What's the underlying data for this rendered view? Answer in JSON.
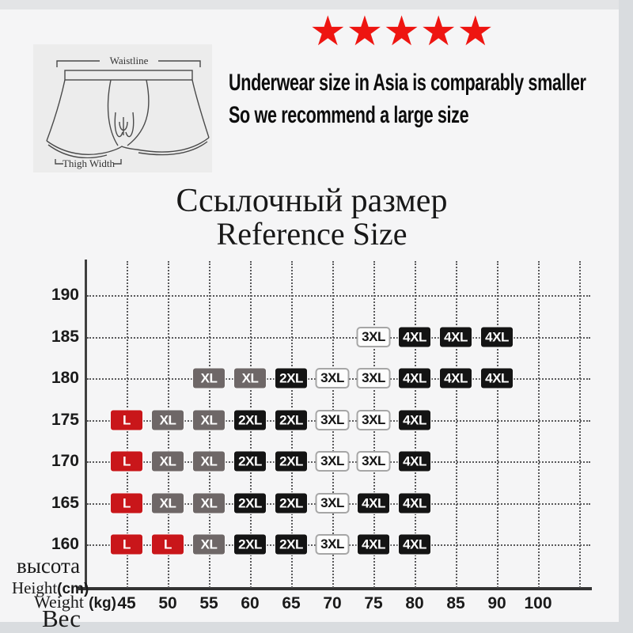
{
  "rating": {
    "stars": "★★★★★",
    "color": "#ee1511"
  },
  "note": {
    "line1": "Underwear size in Asia is comparably smaller",
    "line2": "So we recommend a large size"
  },
  "diagram": {
    "waistline_label": "Waistline",
    "thigh_label": "Thigh Width"
  },
  "captions": {
    "height_ru": "высота",
    "height_en": "Height",
    "height_unit": "(cm)",
    "weight_en": "Weight",
    "weight_unit": "(kg)",
    "weight_ru": "Вес"
  },
  "chart_data": {
    "type": "table",
    "title_ru": "Ссылочный размер",
    "title_en": "Reference Size",
    "xlabel": "Weight (kg) / Вес",
    "ylabel": "высота Height(cm)",
    "x_ticks": [
      45,
      50,
      55,
      60,
      65,
      70,
      75,
      80,
      85,
      90,
      100
    ],
    "y_ticks": [
      190,
      185,
      180,
      175,
      170,
      165,
      160
    ],
    "grid": true,
    "legend_styles": {
      "L": "red",
      "XL": "gray",
      "2XL": "black",
      "3XL": "outline",
      "4XL": "black"
    },
    "size_colors": {
      "L": "#c9161a",
      "XL": "#6e6767",
      "2XL": "#141414",
      "3XL": "#fdfdfd",
      "4XL": "#141414"
    },
    "cells": [
      {
        "height": 185,
        "weight": 75,
        "size": "3XL"
      },
      {
        "height": 185,
        "weight": 80,
        "size": "4XL"
      },
      {
        "height": 185,
        "weight": 85,
        "size": "4XL"
      },
      {
        "height": 185,
        "weight": 90,
        "size": "4XL"
      },
      {
        "height": 180,
        "weight": 55,
        "size": "XL"
      },
      {
        "height": 180,
        "weight": 60,
        "size": "XL"
      },
      {
        "height": 180,
        "weight": 65,
        "size": "2XL"
      },
      {
        "height": 180,
        "weight": 70,
        "size": "3XL"
      },
      {
        "height": 180,
        "weight": 75,
        "size": "3XL"
      },
      {
        "height": 180,
        "weight": 80,
        "size": "4XL"
      },
      {
        "height": 180,
        "weight": 85,
        "size": "4XL"
      },
      {
        "height": 180,
        "weight": 90,
        "size": "4XL"
      },
      {
        "height": 175,
        "weight": 45,
        "size": "L"
      },
      {
        "height": 175,
        "weight": 50,
        "size": "XL"
      },
      {
        "height": 175,
        "weight": 55,
        "size": "XL"
      },
      {
        "height": 175,
        "weight": 60,
        "size": "2XL"
      },
      {
        "height": 175,
        "weight": 65,
        "size": "2XL"
      },
      {
        "height": 175,
        "weight": 70,
        "size": "3XL"
      },
      {
        "height": 175,
        "weight": 75,
        "size": "3XL"
      },
      {
        "height": 175,
        "weight": 80,
        "size": "4XL"
      },
      {
        "height": 170,
        "weight": 45,
        "size": "L"
      },
      {
        "height": 170,
        "weight": 50,
        "size": "XL"
      },
      {
        "height": 170,
        "weight": 55,
        "size": "XL"
      },
      {
        "height": 170,
        "weight": 60,
        "size": "2XL"
      },
      {
        "height": 170,
        "weight": 65,
        "size": "2XL"
      },
      {
        "height": 170,
        "weight": 70,
        "size": "3XL"
      },
      {
        "height": 170,
        "weight": 75,
        "size": "3XL"
      },
      {
        "height": 170,
        "weight": 80,
        "size": "4XL"
      },
      {
        "height": 165,
        "weight": 45,
        "size": "L"
      },
      {
        "height": 165,
        "weight": 50,
        "size": "XL"
      },
      {
        "height": 165,
        "weight": 55,
        "size": "XL"
      },
      {
        "height": 165,
        "weight": 60,
        "size": "2XL"
      },
      {
        "height": 165,
        "weight": 65,
        "size": "2XL"
      },
      {
        "height": 165,
        "weight": 70,
        "size": "3XL"
      },
      {
        "height": 165,
        "weight": 75,
        "size": "4XL"
      },
      {
        "height": 165,
        "weight": 80,
        "size": "4XL"
      },
      {
        "height": 160,
        "weight": 45,
        "size": "L"
      },
      {
        "height": 160,
        "weight": 50,
        "size": "L"
      },
      {
        "height": 160,
        "weight": 55,
        "size": "XL"
      },
      {
        "height": 160,
        "weight": 60,
        "size": "2XL"
      },
      {
        "height": 160,
        "weight": 65,
        "size": "2XL"
      },
      {
        "height": 160,
        "weight": 70,
        "size": "3XL"
      },
      {
        "height": 160,
        "weight": 75,
        "size": "4XL"
      },
      {
        "height": 160,
        "weight": 80,
        "size": "4XL"
      }
    ]
  }
}
